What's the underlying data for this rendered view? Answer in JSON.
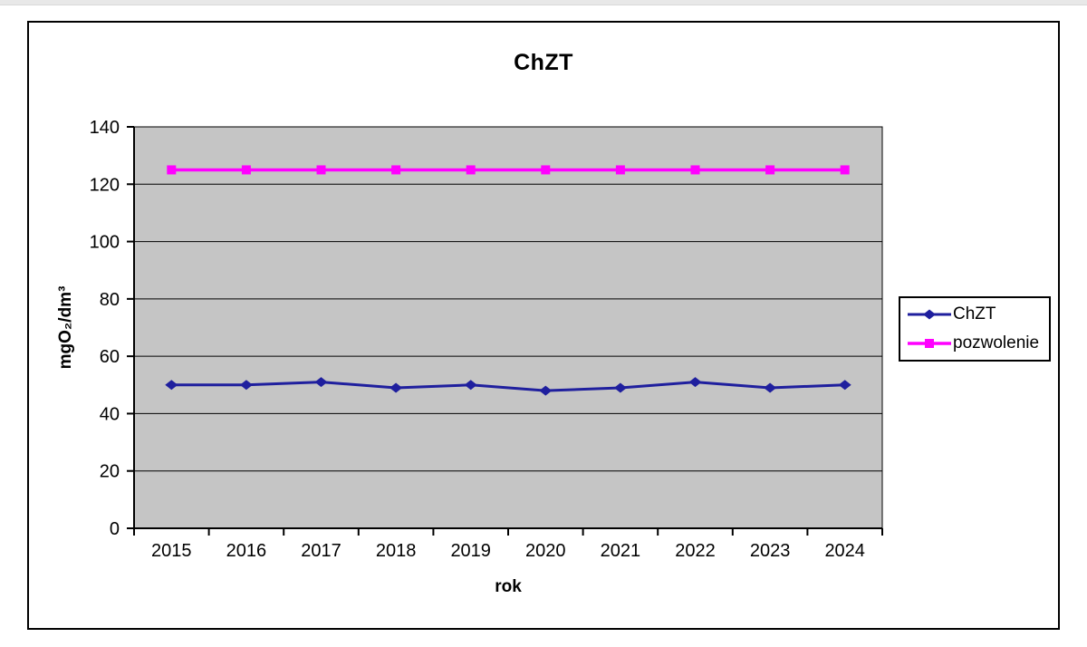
{
  "page": {
    "top_strip_color": "#e8e8e8"
  },
  "frame": {
    "background": "#ffffff",
    "border_color": "#000000"
  },
  "chart_data": {
    "type": "line",
    "title": "ChZT",
    "xlabel": "rok",
    "ylabel": "mgO₂/dm³",
    "categories": [
      "2015",
      "2016",
      "2017",
      "2018",
      "2019",
      "2020",
      "2021",
      "2022",
      "2023",
      "2024"
    ],
    "series": [
      {
        "name": "ChZT",
        "color": "#1f1f9e",
        "marker": "diamond",
        "line_width": 3,
        "values": [
          50,
          50,
          51,
          49,
          50,
          48,
          49,
          51,
          49,
          50
        ]
      },
      {
        "name": "pozwolenie",
        "color": "#ff00ff",
        "marker": "square",
        "line_width": 3.5,
        "values": [
          125,
          125,
          125,
          125,
          125,
          125,
          125,
          125,
          125,
          125
        ]
      }
    ],
    "ylim": [
      0,
      140
    ],
    "yticks": [
      0,
      20,
      40,
      60,
      80,
      100,
      120,
      140
    ],
    "grid": "horizontal-major",
    "legend_position": "right",
    "plot_bg": "#c5c5c5",
    "gridline_color": "#000000",
    "axis_color": "#000000"
  }
}
